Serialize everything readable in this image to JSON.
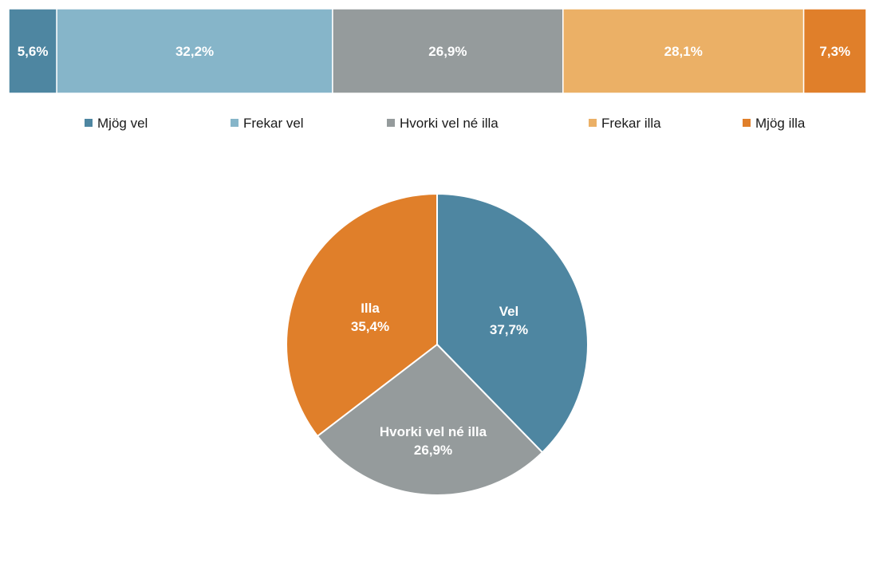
{
  "chart_data": [
    {
      "type": "bar",
      "orientation": "horizontal-stacked-100",
      "categories": [
        "Mjög vel",
        "Frekar vel",
        "Hvorki vel né illa",
        "Frekar illa",
        "Mjög illa"
      ],
      "values": [
        5.6,
        32.2,
        26.9,
        28.1,
        7.3
      ],
      "value_labels": [
        "5,6%",
        "32,2%",
        "26,9%",
        "28,1%",
        "7,3%"
      ],
      "colors": [
        "#4e86a1",
        "#86b5c9",
        "#959b9c",
        "#ebb066",
        "#e07f2a"
      ],
      "legend": {
        "placement": "bottom",
        "entries": [
          "Mjög vel",
          "Frekar vel",
          "Hvorki vel né illa",
          "Frekar illa",
          "Mjög illa"
        ]
      }
    },
    {
      "type": "pie",
      "categories": [
        "Vel",
        "Hvorki vel né illa",
        "Illa"
      ],
      "values": [
        37.7,
        26.9,
        35.4
      ],
      "value_labels": [
        "37,7%",
        "26,9%",
        "35,4%"
      ],
      "colors": [
        "#4e86a1",
        "#959b9c",
        "#e07f2a"
      ]
    }
  ]
}
